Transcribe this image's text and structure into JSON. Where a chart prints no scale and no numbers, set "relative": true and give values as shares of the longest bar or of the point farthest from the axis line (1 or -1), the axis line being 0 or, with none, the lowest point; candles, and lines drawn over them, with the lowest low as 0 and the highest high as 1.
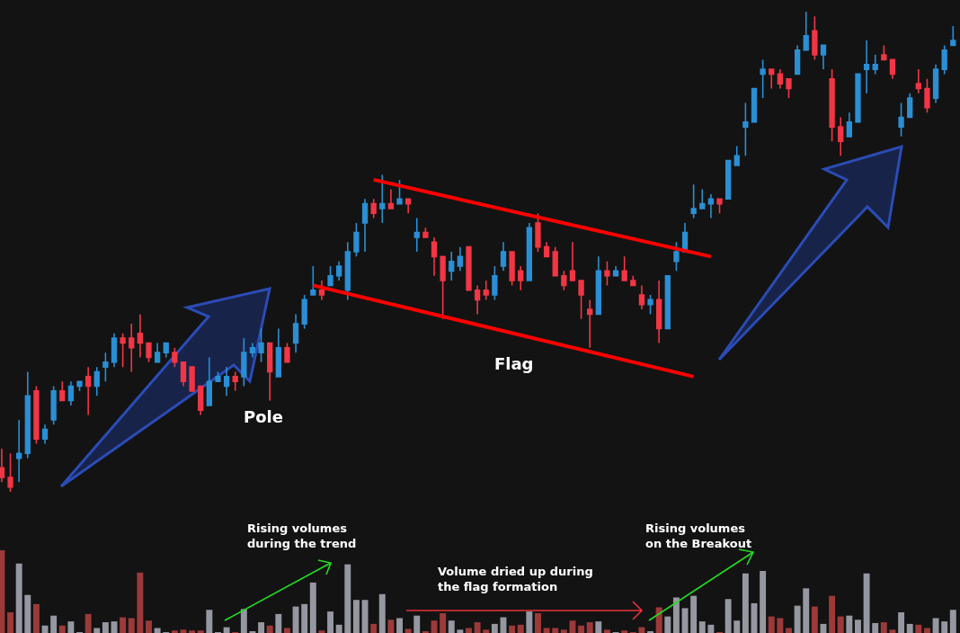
{
  "chart_data": [
    {
      "type": "candlestick",
      "relative": true,
      "tick_labels": false,
      "grid": false,
      "categories": [
        null,
        null,
        null,
        null,
        null,
        null,
        null,
        null,
        null,
        null,
        null,
        null,
        null,
        null,
        null,
        null,
        null,
        null,
        null,
        null,
        null,
        null,
        null,
        null,
        null,
        null,
        null,
        null,
        null,
        null,
        null,
        null,
        null,
        null,
        null,
        null,
        null,
        null,
        null,
        null,
        null,
        null,
        null,
        null,
        null,
        null,
        null,
        null,
        null,
        null,
        null,
        null,
        null,
        null,
        null,
        null,
        null,
        null,
        null,
        null,
        null,
        null,
        null,
        null,
        null,
        null,
        null,
        null,
        null,
        null,
        null,
        null,
        null,
        null,
        null,
        null,
        null,
        null,
        null,
        null,
        null,
        null,
        null,
        null,
        null,
        null,
        null,
        null,
        null,
        null,
        null,
        null,
        null,
        null,
        null,
        null,
        null,
        null,
        null,
        null,
        null,
        null,
        null,
        null,
        null,
        null,
        null,
        null,
        null,
        null,
        null
      ],
      "ohlc": [
        [
          0.05,
          0.09,
          0.02,
          0.03
        ],
        [
          0.03,
          0.08,
          0,
          0.01
        ],
        [
          0.07,
          0.15,
          0.02,
          0.08
        ],
        [
          0.08,
          0.25,
          0.07,
          0.2
        ],
        [
          0.21,
          0.22,
          0.1,
          0.11
        ],
        [
          0.11,
          0.14,
          0.1,
          0.13
        ],
        [
          0.15,
          0.22,
          0.14,
          0.21
        ],
        [
          0.21,
          0.23,
          0.19,
          0.19
        ],
        [
          0.19,
          0.23,
          0.18,
          0.22
        ],
        [
          0.22,
          0.23,
          0.21,
          0.23
        ],
        [
          0.24,
          0.26,
          0.16,
          0.22
        ],
        [
          0.22,
          0.26,
          0.2,
          0.25
        ],
        [
          0.26,
          0.29,
          0.23,
          0.27
        ],
        [
          0.27,
          0.33,
          0.26,
          0.32
        ],
        [
          0.32,
          0.33,
          0.26,
          0.31
        ],
        [
          0.32,
          0.35,
          0.25,
          0.3
        ],
        [
          0.33,
          0.37,
          0.28,
          0.31
        ],
        [
          0.31,
          0.31,
          0.27,
          0.28
        ],
        [
          0.27,
          0.31,
          0.27,
          0.29
        ],
        [
          0.29,
          0.31,
          0.28,
          0.31
        ],
        [
          0.29,
          0.3,
          0.26,
          0.27
        ],
        [
          0.27,
          0.27,
          0.22,
          0.23
        ],
        [
          0.26,
          0.26,
          0.21,
          0.21
        ],
        [
          0.22,
          0.22,
          0.16,
          0.17
        ],
        [
          0.18,
          0.28,
          0.18,
          0.23
        ],
        [
          0.23,
          0.25,
          0.23,
          0.24
        ],
        [
          0.22,
          0.26,
          0.2,
          0.24
        ],
        [
          0.24,
          0.25,
          0.21,
          0.23
        ],
        [
          0.24,
          0.32,
          0.22,
          0.29
        ],
        [
          0.29,
          0.31,
          0.28,
          0.3
        ],
        [
          0.29,
          0.34,
          0.27,
          0.31
        ],
        [
          0.31,
          0.31,
          0.19,
          0.25
        ],
        [
          0.24,
          0.34,
          0.24,
          0.3
        ],
        [
          0.3,
          0.31,
          0.27,
          0.27
        ],
        [
          0.31,
          0.37,
          0.29,
          0.35
        ],
        [
          0.35,
          0.41,
          0.34,
          0.4
        ],
        [
          0.41,
          0.47,
          0.41,
          0.42
        ],
        [
          0.42,
          0.44,
          0.4,
          0.41
        ],
        [
          0.43,
          0.47,
          0.43,
          0.45
        ],
        [
          0.45,
          0.48,
          0.44,
          0.47
        ],
        [
          0.42,
          0.52,
          0.4,
          0.5
        ],
        [
          0.5,
          0.56,
          0.49,
          0.54
        ],
        [
          0.56,
          0.61,
          0.5,
          0.6
        ],
        [
          0.6,
          0.61,
          0.57,
          0.58
        ],
        [
          0.59,
          0.66,
          0.56,
          0.6
        ],
        [
          0.6,
          0.63,
          0.59,
          0.59
        ],
        [
          0.6,
          0.65,
          0.6,
          0.61
        ],
        [
          0.61,
          0.61,
          0.58,
          0.6
        ],
        [
          0.53,
          0.57,
          0.5,
          0.54
        ],
        [
          0.54,
          0.55,
          0.53,
          0.53
        ],
        [
          0.52,
          0.53,
          0.45,
          0.49
        ],
        [
          0.49,
          0.49,
          0.36,
          0.44
        ],
        [
          0.46,
          0.5,
          0.44,
          0.48
        ],
        [
          0.47,
          0.51,
          0.46,
          0.49
        ],
        [
          0.51,
          0.51,
          0.42,
          0.42
        ],
        [
          0.42,
          0.43,
          0.37,
          0.4
        ],
        [
          0.42,
          0.44,
          0.4,
          0.41
        ],
        [
          0.41,
          0.47,
          0.4,
          0.45
        ],
        [
          0.47,
          0.52,
          0.46,
          0.5
        ],
        [
          0.5,
          0.5,
          0.43,
          0.44
        ],
        [
          0.46,
          0.47,
          0.42,
          0.44
        ],
        [
          0.44,
          0.56,
          0.44,
          0.55
        ],
        [
          0.56,
          0.58,
          0.5,
          0.51
        ],
        [
          0.51,
          0.52,
          0.49,
          0.49
        ],
        [
          0.5,
          0.51,
          0.45,
          0.45
        ],
        [
          0.45,
          0.46,
          0.42,
          0.43
        ],
        [
          0.46,
          0.52,
          0.44,
          0.44
        ],
        [
          0.44,
          0.44,
          0.36,
          0.41
        ],
        [
          0.38,
          0.4,
          0.3,
          0.37
        ],
        [
          0.37,
          0.49,
          0.37,
          0.46
        ],
        [
          0.46,
          0.48,
          0.43,
          0.45
        ],
        [
          0.45,
          0.47,
          0.45,
          0.46
        ],
        [
          0.46,
          0.49,
          0.44,
          0.44
        ],
        [
          0.44,
          0.45,
          0.43,
          0.43
        ],
        [
          0.41,
          0.43,
          0.38,
          0.39
        ],
        [
          0.39,
          0.41,
          0.37,
          0.4
        ],
        [
          0.4,
          0.44,
          0.31,
          0.34
        ],
        [
          0.34,
          0.45,
          0.34,
          0.45
        ],
        [
          0.48,
          0.52,
          0.46,
          0.5
        ],
        [
          0.5,
          0.56,
          0.5,
          0.54
        ],
        [
          0.58,
          0.64,
          0.57,
          0.59
        ],
        [
          0.59,
          0.63,
          0.59,
          0.6
        ],
        [
          0.6,
          0.62,
          0.57,
          0.61
        ],
        [
          0.61,
          0.61,
          0.58,
          0.6
        ],
        [
          0.61,
          0.69,
          0.61,
          0.69
        ],
        [
          0.68,
          0.72,
          0.68,
          0.7
        ],
        [
          0.76,
          0.81,
          0.7,
          0.77
        ],
        [
          0.77,
          0.84,
          0.77,
          0.84
        ],
        [
          0.87,
          0.9,
          0.82,
          0.88
        ],
        [
          0.88,
          0.88,
          0.84,
          0.87
        ],
        [
          0.87,
          0.88,
          0.84,
          0.85
        ],
        [
          0.86,
          0.86,
          0.82,
          0.84
        ],
        [
          0.87,
          0.93,
          0.87,
          0.92
        ],
        [
          0.92,
          1,
          0.92,
          0.95
        ],
        [
          0.96,
          0.99,
          0.9,
          0.91
        ],
        [
          0.91,
          0.93,
          0.88,
          0.93
        ],
        [
          0.86,
          0.88,
          0.73,
          0.76
        ],
        [
          0.76,
          0.78,
          0.7,
          0.73
        ],
        [
          0.74,
          0.79,
          0.74,
          0.77
        ],
        [
          0.77,
          0.87,
          0.77,
          0.87
        ],
        [
          0.88,
          0.94,
          0.83,
          0.89
        ],
        [
          0.88,
          0.91,
          0.87,
          0.89
        ],
        [
          0.91,
          0.93,
          0.9,
          0.9
        ],
        [
          0.9,
          0.9,
          0.86,
          0.87
        ],
        [
          0.76,
          0.81,
          0.74,
          0.78
        ],
        [
          0.78,
          0.83,
          0.78,
          0.82
        ],
        [
          0.85,
          0.88,
          0.83,
          0.84
        ],
        [
          0.84,
          0.86,
          0.79,
          0.8
        ],
        [
          0.82,
          0.89,
          0.81,
          0.88
        ],
        [
          0.88,
          0.93,
          0.87,
          0.92
        ],
        [
          0.93,
          0.97,
          0.93,
          0.94
        ]
      ],
      "colors": [
        "#f23645",
        "#f23645",
        "#2a8fd4",
        "#2a8fd4",
        "#f23645",
        "#2a8fd4",
        "#2a8fd4",
        "#f23645",
        "#2a8fd4",
        "#2a8fd4",
        "#f23645",
        "#2a8fd4",
        "#2a8fd4",
        "#2a8fd4",
        "#f23645",
        "#f23645",
        "#f23645",
        "#f23645",
        "#2a8fd4",
        "#2a8fd4",
        "#f23645",
        "#f23645",
        "#f23645",
        "#f23645",
        "#2a8fd4",
        "#2a8fd4",
        "#2a8fd4",
        "#f23645",
        "#2a8fd4",
        "#2a8fd4",
        "#2a8fd4",
        "#f23645",
        "#2a8fd4",
        "#f23645",
        "#2a8fd4",
        "#2a8fd4",
        "#2a8fd4",
        "#f23645",
        "#2a8fd4",
        "#2a8fd4",
        "#2a8fd4",
        "#2a8fd4",
        "#2a8fd4",
        "#f23645",
        "#2a8fd4",
        "#f23645",
        "#2a8fd4",
        "#f23645",
        "#2a8fd4",
        "#f23645",
        "#f23645",
        "#f23645",
        "#2a8fd4",
        "#2a8fd4",
        "#f23645",
        "#f23645",
        "#f23645",
        "#2a8fd4",
        "#2a8fd4",
        "#f23645",
        "#f23645",
        "#2a8fd4",
        "#f23645",
        "#f23645",
        "#f23645",
        "#f23645",
        "#f23645",
        "#f23645",
        "#f23645",
        "#2a8fd4",
        "#f23645",
        "#2a8fd4",
        "#f23645",
        "#f23645",
        "#f23645",
        "#2a8fd4",
        "#f23645",
        "#2a8fd4",
        "#2a8fd4",
        "#2a8fd4",
        "#2a8fd4",
        "#2a8fd4",
        "#2a8fd4",
        "#f23645",
        "#2a8fd4",
        "#2a8fd4",
        "#2a8fd4",
        "#2a8fd4",
        "#2a8fd4",
        "#f23645",
        "#f23645",
        "#f23645",
        "#2a8fd4",
        "#2a8fd4",
        "#f23645",
        "#2a8fd4",
        "#f23645",
        "#f23645",
        "#2a8fd4",
        "#2a8fd4",
        "#2a8fd4",
        "#2a8fd4",
        "#f23645",
        "#f23645",
        "#2a8fd4",
        "#2a8fd4",
        "#f23645",
        "#f23645",
        "#2a8fd4",
        "#2a8fd4",
        "#2a8fd4"
      ],
      "series": [
        {
          "type": "line",
          "color": "#ff0000",
          "values": [
            null,
            null,
            null,
            null,
            null,
            null,
            null,
            null,
            null,
            null,
            null,
            null,
            null,
            null,
            null,
            null,
            null,
            null,
            null,
            null,
            null,
            null,
            null,
            null,
            null,
            null,
            null,
            null,
            null,
            null,
            null,
            null,
            null,
            null,
            null,
            null,
            null,
            null,
            null,
            null,
            null,
            null,
            null,
            0.65,
            null,
            null,
            null,
            null,
            null,
            null,
            null,
            null,
            null,
            null,
            null,
            null,
            null,
            null,
            null,
            null,
            null,
            null,
            null,
            null,
            null,
            null,
            null,
            null,
            null,
            null,
            null,
            null,
            null,
            null,
            null,
            null,
            null,
            null,
            null,
            null,
            null,
            null,
            0.49,
            null,
            null,
            null,
            null,
            null,
            null,
            null,
            null,
            null,
            null,
            null,
            null,
            null,
            null,
            null,
            null,
            null,
            null,
            null,
            null,
            null,
            null,
            null,
            null,
            null,
            null,
            null,
            null
          ]
        },
        {
          "type": "line",
          "color": "#ff0000",
          "values": [
            null,
            null,
            null,
            null,
            null,
            null,
            null,
            null,
            null,
            null,
            null,
            null,
            null,
            null,
            null,
            null,
            null,
            null,
            null,
            null,
            null,
            null,
            null,
            null,
            null,
            null,
            null,
            null,
            null,
            null,
            null,
            null,
            null,
            null,
            null,
            null,
            0.43,
            null,
            null,
            null,
            null,
            null,
            null,
            null,
            null,
            null,
            null,
            null,
            null,
            null,
            null,
            null,
            null,
            null,
            null,
            null,
            null,
            null,
            null,
            null,
            null,
            null,
            null,
            null,
            null,
            null,
            null,
            null,
            null,
            null,
            null,
            null,
            null,
            null,
            null,
            null,
            null,
            null,
            null,
            null,
            0.24,
            null,
            null,
            null,
            null,
            null,
            null,
            null,
            null,
            null,
            null,
            null,
            null,
            null,
            null,
            null,
            null,
            null,
            null,
            null,
            null,
            null,
            null,
            null,
            null,
            null,
            null,
            null,
            null,
            null,
            null
          ]
        }
      ],
      "annotations": [
        "Flag",
        "Pole"
      ]
    },
    {
      "type": "bar",
      "relative": true,
      "tick_labels": false,
      "grid": false,
      "categories": [
        null,
        null,
        null,
        null,
        null,
        null,
        null,
        null,
        null,
        null,
        null,
        null,
        null,
        null,
        null,
        null,
        null,
        null,
        null,
        null,
        null,
        null,
        null,
        null,
        null,
        null,
        null,
        null,
        null,
        null,
        null,
        null,
        null,
        null,
        null,
        null,
        null,
        null,
        null,
        null,
        null,
        null,
        null,
        null,
        null,
        null,
        null,
        null,
        null,
        null,
        null,
        null,
        null,
        null,
        null,
        null,
        null,
        null,
        null,
        null,
        null,
        null,
        null,
        null,
        null,
        null,
        null,
        null,
        null,
        null,
        null,
        null,
        null,
        null,
        null,
        null,
        null,
        null,
        null,
        null,
        null,
        null,
        null,
        null,
        null,
        null,
        null,
        null,
        null,
        null,
        null,
        null,
        null,
        null,
        null,
        null,
        null,
        null,
        null,
        null,
        null,
        null,
        null,
        null,
        null,
        null,
        null,
        null,
        null,
        null,
        null
      ],
      "values": [
        1,
        0.25,
        0.84,
        0.46,
        0.35,
        0.09,
        0.21,
        0.09,
        0.14,
        0.01,
        0.23,
        0.06,
        0.13,
        0.14,
        0.19,
        0.18,
        0.73,
        0.15,
        0.06,
        0.01,
        0.03,
        0.04,
        0.03,
        0.03,
        0.28,
        0.01,
        0.07,
        0.01,
        0.29,
        0.02,
        0.13,
        0.09,
        0.23,
        0.06,
        0.32,
        0.35,
        0.61,
        0.03,
        0.26,
        0.1,
        0.83,
        0.4,
        0.4,
        0.11,
        0.47,
        0.16,
        0.18,
        0.05,
        0.21,
        0.02,
        0.15,
        0.24,
        0.15,
        0.04,
        0.06,
        0.13,
        0.04,
        0.11,
        0.19,
        0.09,
        0.1,
        0.26,
        0.24,
        0.06,
        0.06,
        0.04,
        0.15,
        0.09,
        0.13,
        0.14,
        0.04,
        0.01,
        0.03,
        0.01,
        0.07,
        0.02,
        0.31,
        0.2,
        0.43,
        0.3,
        0.45,
        0.14,
        0.1,
        0.01,
        0.41,
        0.15,
        0.72,
        0.36,
        0.75,
        0.2,
        0.18,
        0.06,
        0.33,
        0.54,
        0.32,
        0.11,
        0.45,
        0.2,
        0.21,
        0.16,
        0.72,
        0.12,
        0.13,
        0.04,
        0.25,
        0.11,
        0.1,
        0.06,
        0.18,
        0.14,
        0.28
      ],
      "colors": [
        "#9c3a3a",
        "#9c3a3a",
        "#9598a1",
        "#9598a1",
        "#9c3a3a",
        "#9598a1",
        "#9598a1",
        "#9c3a3a",
        "#9598a1",
        "#9598a1",
        "#9c3a3a",
        "#9598a1",
        "#9598a1",
        "#9598a1",
        "#9c3a3a",
        "#9c3a3a",
        "#9c3a3a",
        "#9c3a3a",
        "#9598a1",
        "#9598a1",
        "#9c3a3a",
        "#9c3a3a",
        "#9c3a3a",
        "#9c3a3a",
        "#9598a1",
        "#9598a1",
        "#9598a1",
        "#9c3a3a",
        "#9598a1",
        "#9598a1",
        "#9598a1",
        "#9c3a3a",
        "#9598a1",
        "#9c3a3a",
        "#9598a1",
        "#9598a1",
        "#9598a1",
        "#9c3a3a",
        "#9598a1",
        "#9598a1",
        "#9598a1",
        "#9598a1",
        "#9598a1",
        "#9c3a3a",
        "#9598a1",
        "#9c3a3a",
        "#9598a1",
        "#9c3a3a",
        "#9598a1",
        "#9c3a3a",
        "#9c3a3a",
        "#9c3a3a",
        "#9598a1",
        "#9598a1",
        "#9c3a3a",
        "#9c3a3a",
        "#9c3a3a",
        "#9598a1",
        "#9598a1",
        "#9c3a3a",
        "#9c3a3a",
        "#9598a1",
        "#9c3a3a",
        "#9c3a3a",
        "#9c3a3a",
        "#9c3a3a",
        "#9c3a3a",
        "#9c3a3a",
        "#9c3a3a",
        "#9598a1",
        "#9c3a3a",
        "#9598a1",
        "#9c3a3a",
        "#9c3a3a",
        "#9c3a3a",
        "#9598a1",
        "#9c3a3a",
        "#9598a1",
        "#9598a1",
        "#9598a1",
        "#9598a1",
        "#9598a1",
        "#9598a1",
        "#9c3a3a",
        "#9598a1",
        "#9598a1",
        "#9598a1",
        "#9598a1",
        "#9598a1",
        "#9c3a3a",
        "#9c3a3a",
        "#9c3a3a",
        "#9598a1",
        "#9598a1",
        "#9c3a3a",
        "#9598a1",
        "#9c3a3a",
        "#9c3a3a",
        "#9598a1",
        "#9598a1",
        "#9598a1",
        "#9598a1",
        "#9c3a3a",
        "#9c3a3a",
        "#9598a1",
        "#9598a1",
        "#9c3a3a",
        "#9c3a3a",
        "#9598a1",
        "#9598a1",
        "#9598a1"
      ],
      "annotations": [
        "Rising volumes\nduring the trend",
        "Volume dried up during\nthe flag formation",
        "Rising volumes\non the Breakout"
      ]
    }
  ]
}
